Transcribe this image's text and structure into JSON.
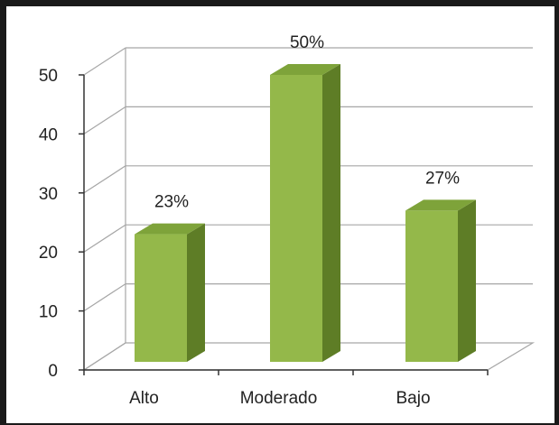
{
  "chart_data": {
    "type": "bar",
    "style": "3d-column",
    "categories": [
      "Alto",
      "Moderado",
      "Bajo"
    ],
    "values": [
      23,
      50,
      27
    ],
    "data_labels": [
      "23%",
      "50%",
      "27%"
    ],
    "ylim": [
      0,
      50
    ],
    "yticks": [
      "0",
      "10",
      "20",
      "30",
      "40",
      "50"
    ],
    "ytick_values": [
      0,
      10,
      20,
      30,
      40,
      50
    ],
    "grid": true,
    "legend": "none",
    "colors": {
      "bar_front": "#94b84a",
      "bar_side": "#5e7d26",
      "bar_top": "#7ea33a",
      "grid": "#a6a6a6",
      "axis": "#333333"
    }
  }
}
